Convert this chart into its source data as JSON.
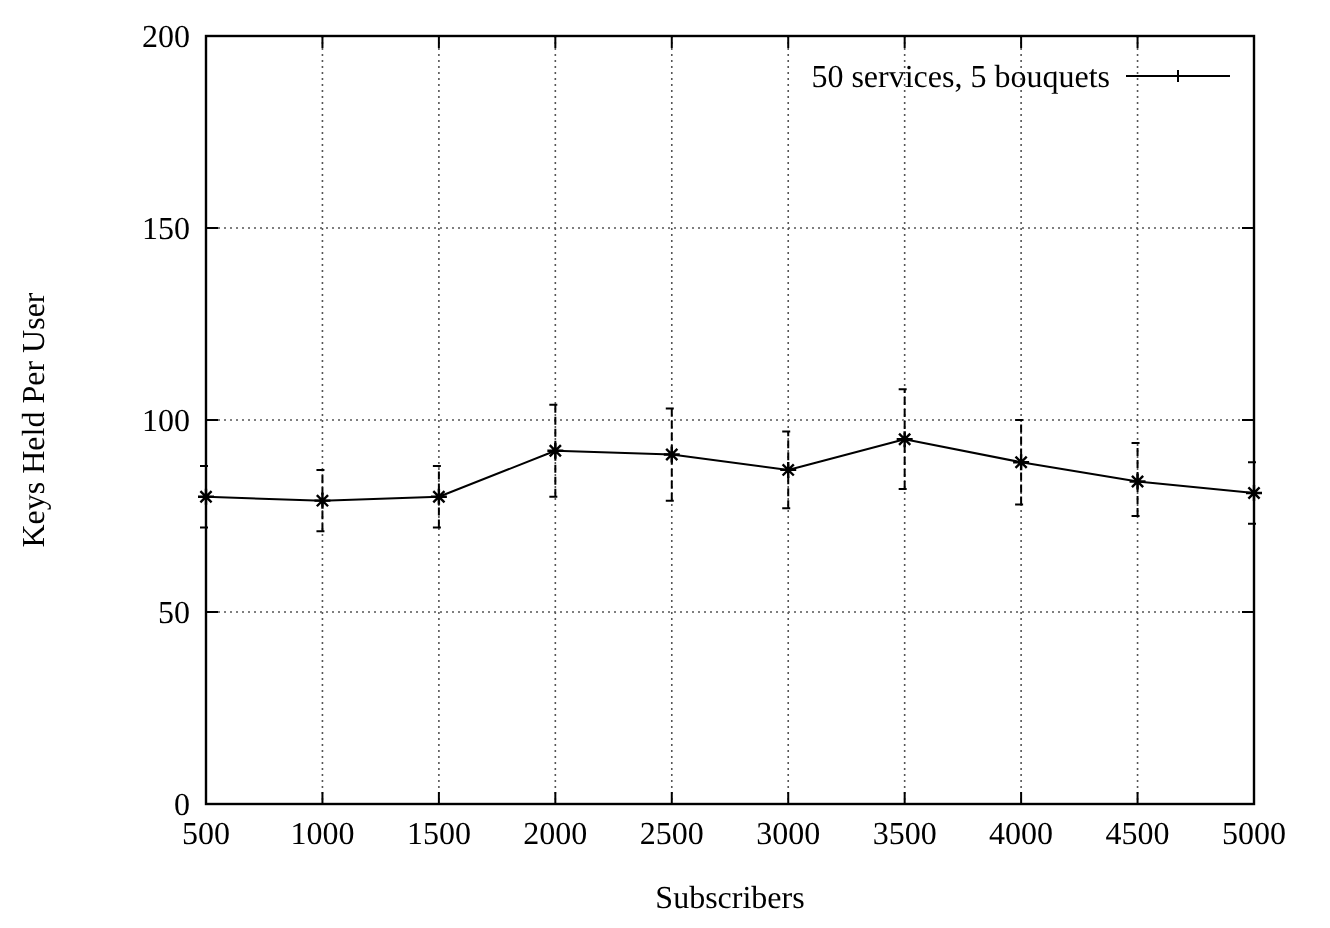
{
  "chart_data": {
    "type": "line",
    "xlabel": "Subscribers",
    "ylabel": "Keys Held Per User",
    "x": [
      500,
      1000,
      1500,
      2000,
      2500,
      3000,
      3500,
      4000,
      4500,
      5000
    ],
    "series": [
      {
        "name": "50 services, 5 bouquets",
        "color": "#000000",
        "values": [
          80,
          79,
          80,
          92,
          91,
          87,
          95,
          89,
          84,
          81
        ],
        "errors": [
          [
            72,
            88
          ],
          [
            71,
            87
          ],
          [
            72,
            88
          ],
          [
            80,
            104
          ],
          [
            79,
            103
          ],
          [
            77,
            97
          ],
          [
            82,
            108
          ],
          [
            78,
            100
          ],
          [
            75,
            94
          ],
          [
            73,
            89
          ]
        ]
      }
    ],
    "xlim": [
      500,
      5000
    ],
    "xticks": [
      500,
      1000,
      1500,
      2000,
      2500,
      3000,
      3500,
      4000,
      4500,
      5000
    ],
    "ylim": [
      0,
      200
    ],
    "yticks": [
      0,
      50,
      100,
      150,
      200
    ],
    "grid": true,
    "legend": "top right",
    "marker": "cross",
    "line_style": "solid"
  }
}
